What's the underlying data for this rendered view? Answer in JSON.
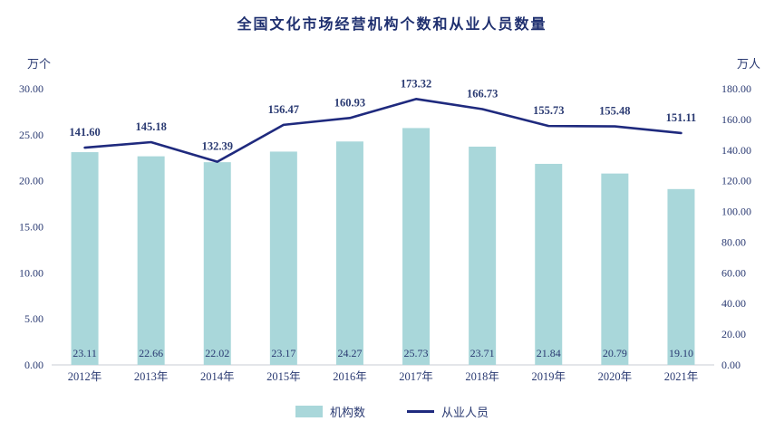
{
  "chart_data": {
    "type": "bar",
    "subtype": "bar-line-combo",
    "title": "全国文化市场经营机构个数和从业人员数量",
    "categories": [
      "2012年",
      "2013年",
      "2014年",
      "2015年",
      "2016年",
      "2017年",
      "2018年",
      "2019年",
      "2020年",
      "2021年"
    ],
    "series": [
      {
        "name": "机构数",
        "type": "bar",
        "axis": "left",
        "color": "#a9d7da",
        "values": [
          23.11,
          22.66,
          22.02,
          23.17,
          24.27,
          25.73,
          23.71,
          21.84,
          20.79,
          19.1
        ]
      },
      {
        "name": "从业人员",
        "type": "line",
        "axis": "right",
        "color": "#1f2a7e",
        "values": [
          141.6,
          145.18,
          132.39,
          156.47,
          160.93,
          173.32,
          166.73,
          155.73,
          155.48,
          151.11
        ]
      }
    ],
    "left_axis": {
      "unit": "万个",
      "min": 0,
      "max": 30,
      "step": 5,
      "tick_labels": [
        "0.00",
        "5.00",
        "10.00",
        "15.00",
        "20.00",
        "25.00",
        "30.00"
      ]
    },
    "right_axis": {
      "unit": "万人",
      "min": 0,
      "max": 180,
      "step": 20,
      "tick_labels": [
        "0.00",
        "20.00",
        "40.00",
        "60.00",
        "80.00",
        "100.00",
        "120.00",
        "140.00",
        "160.00",
        "180.00"
      ]
    },
    "grid": false,
    "legend_position": "bottom",
    "text_color": "#2a3a72",
    "axis_line_color": "#c9ced6"
  }
}
